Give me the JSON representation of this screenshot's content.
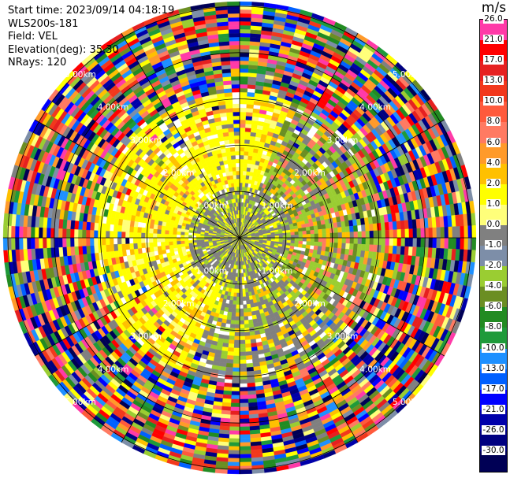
{
  "info": {
    "start_time": "Start time: 2023/09/14 04:18:19",
    "station": "WLS200s-181",
    "field": "Field: VEL",
    "elevation": "Elevation(deg): 35.30",
    "nrays": "NRays: 120"
  },
  "chart_data": {
    "type": "heatmap",
    "projection": "polar PPI",
    "field": "VEL",
    "unit": "m/s",
    "n_rays": 120,
    "elevation_deg": 35.3,
    "range_rings_km": [
      1.0,
      2.0,
      3.0,
      4.0,
      5.0
    ],
    "ring_labels": [
      "1.00km",
      "2.00km",
      "3.00km",
      "4.00km",
      "5.00km"
    ],
    "grid": true,
    "colorbar": {
      "title": "m/s",
      "placement": "right",
      "ticks": [
        "26.0",
        "21.0",
        "17.0",
        "13.0",
        "10.0",
        "8.0",
        "6.0",
        "4.0",
        "2.0",
        "1.0",
        "0.0",
        "-1.0",
        "-2.0",
        "-4.0",
        "-6.0",
        "-8.0",
        "-10.0",
        "-13.0",
        "-17.0",
        "-21.0",
        "-26.0",
        "-30.0"
      ],
      "colors": [
        "#ff3aa8",
        "#ff0000",
        "#e62020",
        "#f2381c",
        "#ff5a3c",
        "#ff7a62",
        "#ff9a2a",
        "#ffc000",
        "#ffff00",
        "#ffff7a",
        "#808080",
        "#7d8ea8",
        "#9acd32",
        "#6b8e23",
        "#228b22",
        "#1f9a3a",
        "#1e90ff",
        "#0060ff",
        "#0000ff",
        "#0000aa",
        "#000080",
        "#000055"
      ]
    }
  }
}
